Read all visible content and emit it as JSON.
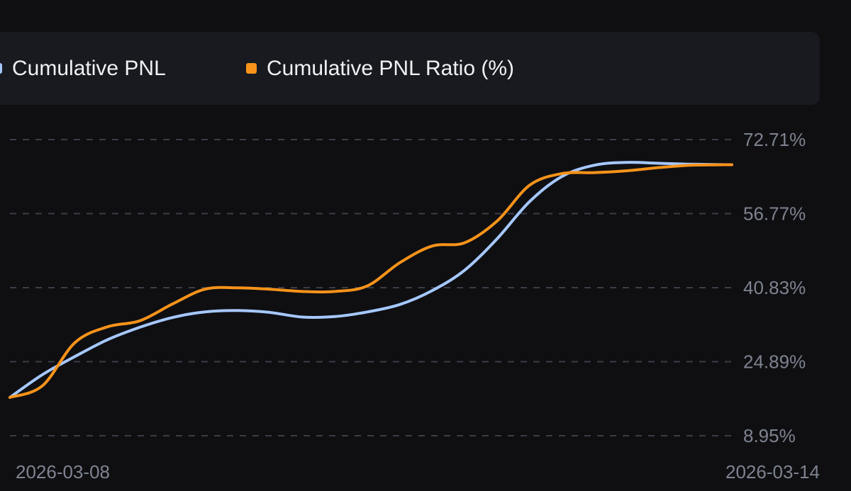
{
  "legend": [
    {
      "label": "Cumulative PNL",
      "color": "#a6c8ff"
    },
    {
      "label": "Cumulative PNL Ratio (%)",
      "color": "#f7931a"
    }
  ],
  "chart_data": {
    "type": "line",
    "title": "",
    "xlabel": "",
    "ylabel": "",
    "x_tick_labels": [
      "2026-03-08",
      "2026-03-14"
    ],
    "y_tick_labels": [
      "72.71%",
      "56.77%",
      "40.83%",
      "24.89%",
      "8.95%"
    ],
    "y_ticks": [
      72.71,
      56.77,
      40.83,
      24.89,
      8.95
    ],
    "ylim": [
      8.95,
      72.71
    ],
    "grid": true,
    "legend_position": "top",
    "x": [
      0,
      0.045,
      0.09,
      0.135,
      0.18,
      0.225,
      0.27,
      0.315,
      0.36,
      0.405,
      0.45,
      0.495,
      0.54,
      0.585,
      0.63,
      0.675,
      0.72,
      0.765,
      0.81,
      0.855,
      0.9,
      0.945,
      1.0
    ],
    "series": [
      {
        "name": "Cumulative PNL",
        "color": "#a6c8ff",
        "values": [
          17.2,
          22.1,
          26.0,
          29.6,
          32.3,
          34.4,
          35.6,
          35.9,
          35.5,
          34.5,
          34.6,
          35.6,
          37.2,
          40.2,
          44.6,
          51.4,
          59.4,
          64.8,
          67.2,
          67.8,
          67.6,
          67.4,
          67.3
        ]
      },
      {
        "name": "Cumulative PNL Ratio (%)",
        "color": "#f7931a",
        "values": [
          17.2,
          19.7,
          29.0,
          32.4,
          33.7,
          37.3,
          40.5,
          40.8,
          40.5,
          40.0,
          40.0,
          41.2,
          46.2,
          49.8,
          50.5,
          55.2,
          62.9,
          65.4,
          65.6,
          66.0,
          66.7,
          67.2,
          67.3
        ]
      }
    ]
  }
}
